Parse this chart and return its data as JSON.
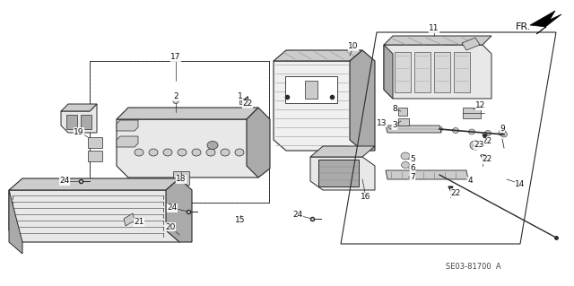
{
  "bg_color": "#ffffff",
  "part_number_code": "SE03-81700  A",
  "fr_label": "FR.",
  "line_color": "#2a2a2a",
  "fill_light": "#e8e8e8",
  "fill_mid": "#cccccc",
  "fill_dark": "#aaaaaa",
  "fill_hatch": "#bbbbbb"
}
